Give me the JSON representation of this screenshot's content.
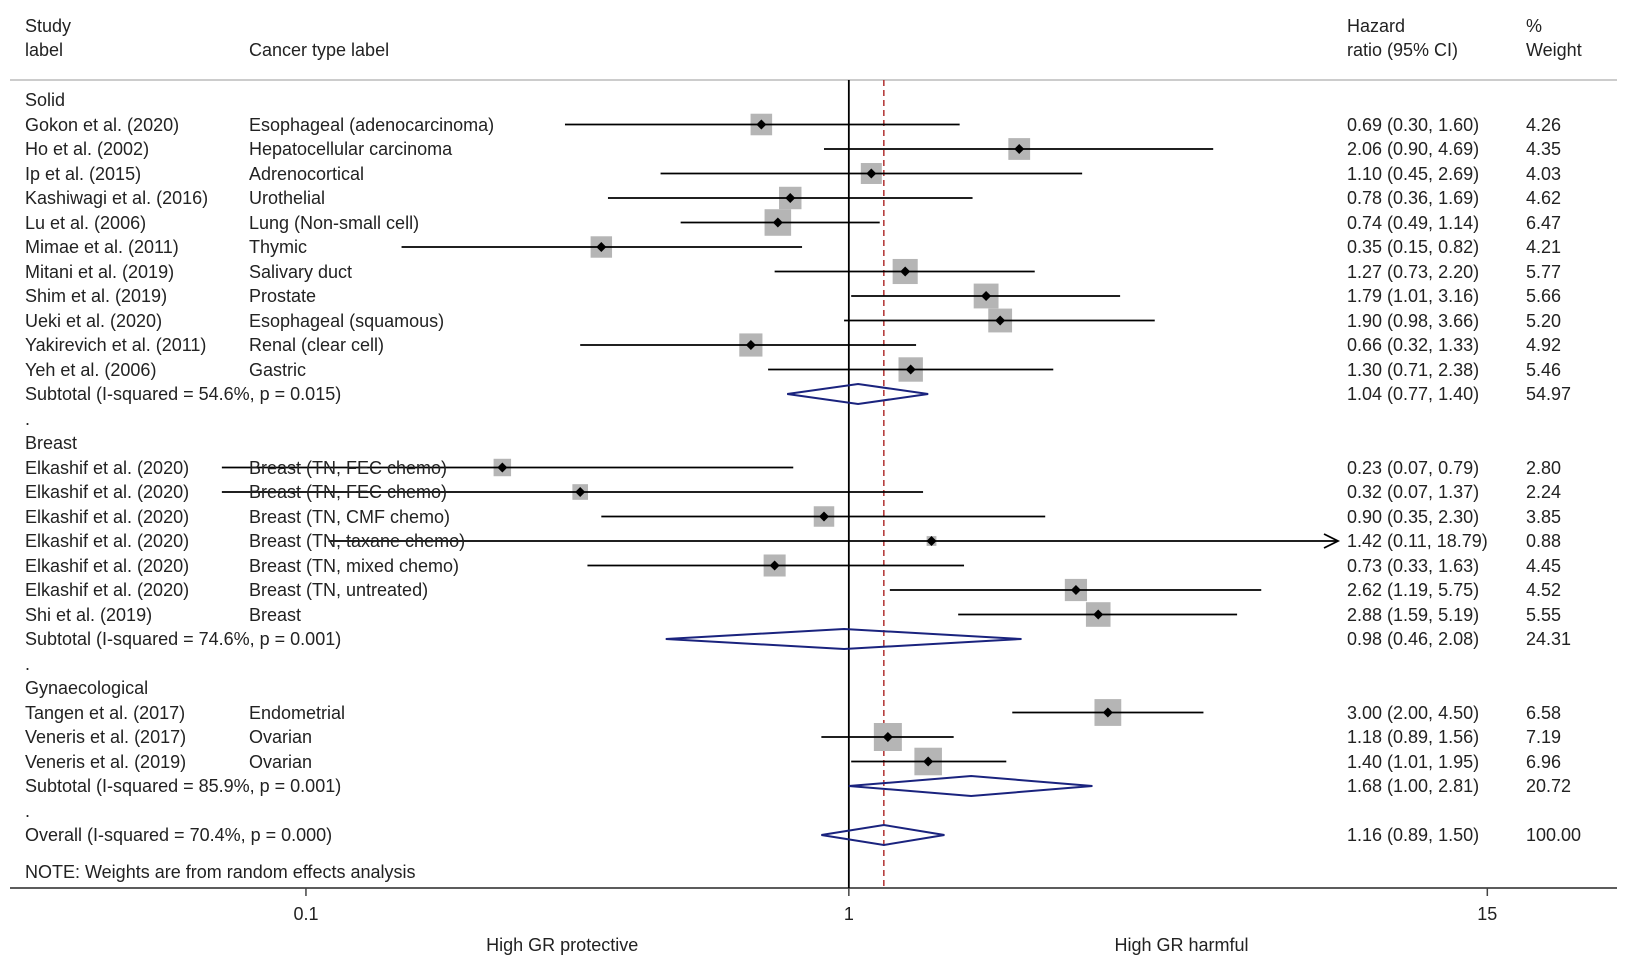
{
  "headers": {
    "study_line1": "Study",
    "study_line2": "label",
    "cancer": "Cancer type label",
    "hr_line1": "Hazard",
    "hr_line2": "ratio (95% CI)",
    "wt_line1": "%",
    "wt_line2": "Weight"
  },
  "note": "NOTE: Weights are from random effects analysis",
  "dot_marker": ".",
  "chart_data": {
    "type": "forest",
    "x_scale": "log",
    "x_ticks": [
      {
        "value": 0.1,
        "label": "0.1"
      },
      {
        "value": 1,
        "label": "1"
      },
      {
        "value": 15,
        "label": "15"
      }
    ],
    "xlim": [
      0.0285,
      26
    ],
    "null_line": 1,
    "overall_line": 1.16,
    "xlabel_left": "High GR protective",
    "xlabel_right": "High GR harmful",
    "groups": [
      {
        "name": "Solid",
        "studies": [
          {
            "study": "Gokon et al. (2020)",
            "cancer": "Esophageal (adenocarcinoma)",
            "hr": 0.69,
            "lo": 0.3,
            "hi": 1.6,
            "hr_text": "0.69 (0.30, 1.60)",
            "weight": "4.26"
          },
          {
            "study": "Ho et al. (2002)",
            "cancer": "Hepatocellular carcinoma",
            "hr": 2.06,
            "lo": 0.9,
            "hi": 4.69,
            "hr_text": "2.06 (0.90, 4.69)",
            "weight": "4.35"
          },
          {
            "study": "Ip et al. (2015)",
            "cancer": "Adrenocortical",
            "hr": 1.1,
            "lo": 0.45,
            "hi": 2.69,
            "hr_text": "1.10 (0.45, 2.69)",
            "weight": "4.03"
          },
          {
            "study": "Kashiwagi et al. (2016)",
            "cancer": "Urothelial",
            "hr": 0.78,
            "lo": 0.36,
            "hi": 1.69,
            "hr_text": "0.78 (0.36, 1.69)",
            "weight": "4.62"
          },
          {
            "study": "Lu et al. (2006)",
            "cancer": "Lung (Non-small cell)",
            "hr": 0.74,
            "lo": 0.49,
            "hi": 1.14,
            "hr_text": "0.74 (0.49, 1.14)",
            "weight": "6.47"
          },
          {
            "study": "Mimae et al. (2011)",
            "cancer": "Thymic",
            "hr": 0.35,
            "lo": 0.15,
            "hi": 0.82,
            "hr_text": "0.35 (0.15, 0.82)",
            "weight": "4.21"
          },
          {
            "study": "Mitani et al. (2019)",
            "cancer": "Salivary duct",
            "hr": 1.27,
            "lo": 0.73,
            "hi": 2.2,
            "hr_text": "1.27 (0.73, 2.20)",
            "weight": "5.77"
          },
          {
            "study": "Shim et al. (2019)",
            "cancer": "Prostate",
            "hr": 1.79,
            "lo": 1.01,
            "hi": 3.16,
            "hr_text": "1.79 (1.01, 3.16)",
            "weight": "5.66"
          },
          {
            "study": "Ueki et al. (2020)",
            "cancer": "Esophageal (squamous)",
            "hr": 1.9,
            "lo": 0.98,
            "hi": 3.66,
            "hr_text": "1.90 (0.98, 3.66)",
            "weight": "5.20"
          },
          {
            "study": "Yakirevich et al. (2011)",
            "cancer": "Renal (clear cell)",
            "hr": 0.66,
            "lo": 0.32,
            "hi": 1.33,
            "hr_text": "0.66 (0.32, 1.33)",
            "weight": "4.92"
          },
          {
            "study": "Yeh et al. (2006)",
            "cancer": "Gastric",
            "hr": 1.3,
            "lo": 0.71,
            "hi": 2.38,
            "hr_text": "1.30 (0.71, 2.38)",
            "weight": "5.46"
          }
        ],
        "subtotal": {
          "label": "Subtotal  (I-squared = 54.6%, p = 0.015)",
          "hr": 1.04,
          "lo": 0.77,
          "hi": 1.4,
          "hr_text": "1.04 (0.77, 1.40)",
          "weight": "54.97"
        }
      },
      {
        "name": "Breast",
        "studies": [
          {
            "study": "Elkashif et al. (2020)",
            "cancer": "Breast (TN, FEC chemo)",
            "hr": 0.23,
            "lo": 0.07,
            "hi": 0.79,
            "hr_text": "0.23 (0.07, 0.79)",
            "weight": "2.80"
          },
          {
            "study": "Elkashif et al. (2020)",
            "cancer": "Breast (TN, FEC chemo)",
            "hr": 0.32,
            "lo": 0.07,
            "hi": 1.37,
            "hr_text": "0.32 (0.07, 1.37)",
            "weight": "2.24"
          },
          {
            "study": "Elkashif et al. (2020)",
            "cancer": "Breast (TN, CMF chemo)",
            "hr": 0.9,
            "lo": 0.35,
            "hi": 2.3,
            "hr_text": "0.90 (0.35, 2.30)",
            "weight": "3.85"
          },
          {
            "study": "Elkashif et al. (2020)",
            "cancer": "Breast (TN, taxane chemo)",
            "hr": 1.42,
            "lo": 0.11,
            "hi": 18.79,
            "hr_text": "1.42 (0.11, 18.79)",
            "weight": "0.88",
            "arrow_right": true
          },
          {
            "study": "Elkashif et al. (2020)",
            "cancer": "Breast (TN, mixed chemo)",
            "hr": 0.73,
            "lo": 0.33,
            "hi": 1.63,
            "hr_text": "0.73 (0.33, 1.63)",
            "weight": "4.45"
          },
          {
            "study": "Elkashif et al. (2020)",
            "cancer": "Breast (TN, untreated)",
            "hr": 2.62,
            "lo": 1.19,
            "hi": 5.75,
            "hr_text": "2.62 (1.19, 5.75)",
            "weight": "4.52"
          },
          {
            "study": "Shi et al. (2019)",
            "cancer": "Breast",
            "hr": 2.88,
            "lo": 1.59,
            "hi": 5.19,
            "hr_text": "2.88 (1.59, 5.19)",
            "weight": "5.55"
          }
        ],
        "subtotal": {
          "label": "Subtotal  (I-squared = 74.6%, p = 0.001)",
          "hr": 0.98,
          "lo": 0.46,
          "hi": 2.08,
          "hr_text": "0.98 (0.46, 2.08)",
          "weight": "24.31"
        }
      },
      {
        "name": "Gynaecological",
        "studies": [
          {
            "study": "Tangen et al. (2017)",
            "cancer": "Endometrial",
            "hr": 3.0,
            "lo": 2.0,
            "hi": 4.5,
            "hr_text": "3.00 (2.00, 4.50)",
            "weight": "6.58"
          },
          {
            "study": "Veneris et al. (2017)",
            "cancer": "Ovarian",
            "hr": 1.18,
            "lo": 0.89,
            "hi": 1.56,
            "hr_text": "1.18 (0.89, 1.56)",
            "weight": "7.19"
          },
          {
            "study": "Veneris et al. (2019)",
            "cancer": "Ovarian",
            "hr": 1.4,
            "lo": 1.01,
            "hi": 1.95,
            "hr_text": "1.40 (1.01, 1.95)",
            "weight": "6.96"
          }
        ],
        "subtotal": {
          "label": "Subtotal  (I-squared = 85.9%, p = 0.001)",
          "hr": 1.68,
          "lo": 1.0,
          "hi": 2.81,
          "hr_text": "1.68 (1.00, 2.81)",
          "weight": "20.72"
        }
      }
    ],
    "overall": {
      "label": "Overall  (I-squared = 70.4%, p = 0.000)",
      "hr": 1.16,
      "lo": 0.89,
      "hi": 1.5,
      "hr_text": "1.16 (0.89, 1.50)",
      "weight": "100.00"
    }
  }
}
